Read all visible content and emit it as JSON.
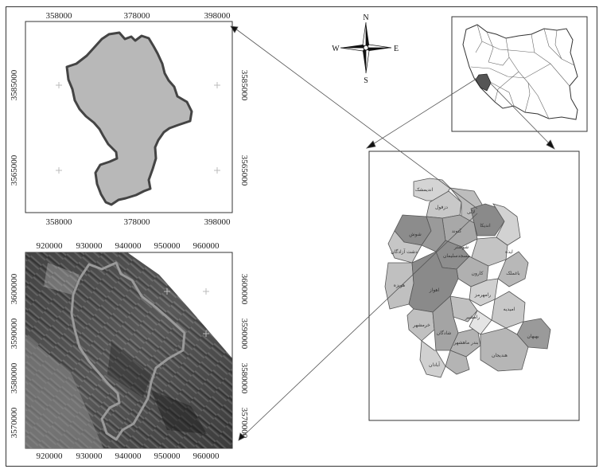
{
  "compass": {
    "n": "N",
    "s": "S",
    "e": "E",
    "w": "W"
  },
  "top_map": {
    "x_ticks": [
      "358000",
      "378000",
      "398000"
    ],
    "y_ticks": [
      "3585000",
      "3565000"
    ]
  },
  "sat_map": {
    "x_ticks": [
      "920000",
      "930000",
      "940000",
      "950000",
      "960000"
    ],
    "y_ticks": [
      "3600000",
      "3590000",
      "3580000",
      "3570000"
    ]
  },
  "province": {
    "labels": [
      "اندیمشک",
      "دزفول",
      "لالی",
      "اندیکا",
      "گتوند",
      "شوش",
      "مسجدسلیمان",
      "ایذه",
      "دشت آزادگان",
      "باغملک",
      "کارون",
      "هویزه",
      "اهواز",
      "رامهرمز",
      "امیدیه",
      "خرمشهر",
      "شادگان",
      "آبادان",
      "بندر ماهشهر",
      "هندیجان",
      "بهبهان",
      "شوشتر",
      "رامشیر"
    ]
  },
  "colors": {
    "study_area": "#b8b8b8",
    "outline": "#444444",
    "highlight": "#555555"
  }
}
